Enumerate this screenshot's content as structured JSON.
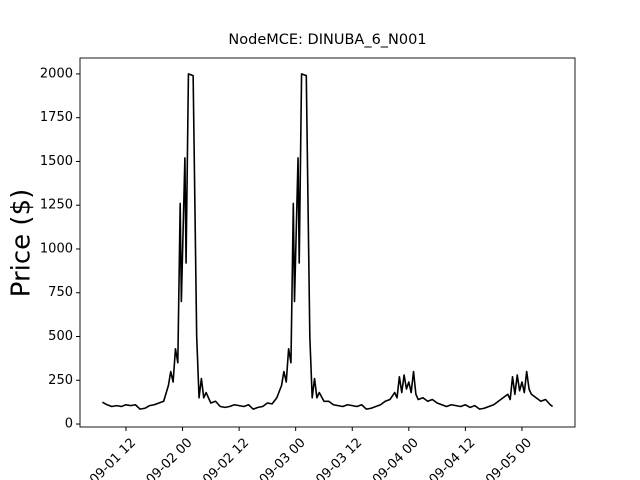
{
  "chart_data": {
    "type": "line",
    "title": "NodeMCE: DINUBA_6_N001",
    "y_label": "Price ($)",
    "x": [
      "09-01 07:00",
      "09-01 08:00",
      "09-01 09:00",
      "09-01 10:00",
      "09-01 11:00",
      "09-01 12:00",
      "09-01 13:00",
      "09-01 14:00",
      "09-01 15:00",
      "09-01 16:00",
      "09-01 17:00",
      "09-01 18:00",
      "09-01 19:00",
      "09-01 20:00",
      "09-01 21:00",
      "09-01 21:30",
      "09-01 22:00",
      "09-01 22:30",
      "09-01 23:00",
      "09-01 23:30",
      "09-01 23:45",
      "09-02 00:30",
      "09-02 00:45",
      "09-02 01:15",
      "09-02 02:15",
      "09-02 03:00",
      "09-02 03:30",
      "09-02 04:00",
      "09-02 04:30",
      "09-02 05:00",
      "09-02 06:00",
      "09-02 07:00",
      "09-02 08:00",
      "09-02 09:00",
      "09-02 10:00",
      "09-02 11:00",
      "09-02 12:00",
      "09-02 13:00",
      "09-02 14:00",
      "09-02 15:00",
      "09-02 16:00",
      "09-02 17:00",
      "09-02 18:00",
      "09-02 19:00",
      "09-02 20:00",
      "09-02 21:00",
      "09-02 21:30",
      "09-02 22:00",
      "09-02 22:30",
      "09-02 23:00",
      "09-02 23:30",
      "09-02 23:45",
      "09-03 00:30",
      "09-03 00:45",
      "09-03 01:15",
      "09-03 02:15",
      "09-03 03:00",
      "09-03 03:30",
      "09-03 04:00",
      "09-03 04:30",
      "09-03 05:00",
      "09-03 06:00",
      "09-03 07:00",
      "09-03 08:00",
      "09-03 09:00",
      "09-03 10:00",
      "09-03 11:00",
      "09-03 12:00",
      "09-03 13:00",
      "09-03 14:00",
      "09-03 15:00",
      "09-03 16:00",
      "09-03 17:00",
      "09-03 18:00",
      "09-03 19:00",
      "09-03 20:00",
      "09-03 21:00",
      "09-03 21:30",
      "09-03 22:00",
      "09-03 22:30",
      "09-03 23:00",
      "09-03 23:30",
      "09-04 00:00",
      "09-04 00:30",
      "09-04 01:00",
      "09-04 01:30",
      "09-04 02:00",
      "09-04 03:00",
      "09-04 04:00",
      "09-04 05:00",
      "09-04 06:00",
      "09-04 07:00",
      "09-04 08:00",
      "09-04 09:00",
      "09-04 10:00",
      "09-04 11:00",
      "09-04 12:00",
      "09-04 13:00",
      "09-04 14:00",
      "09-04 15:00",
      "09-04 16:00",
      "09-04 17:00",
      "09-04 18:00",
      "09-04 19:00",
      "09-04 20:00",
      "09-04 21:00",
      "09-04 21:30",
      "09-04 22:00",
      "09-04 22:30",
      "09-04 23:00",
      "09-04 23:30",
      "09-05 00:00",
      "09-05 00:30",
      "09-05 01:00",
      "09-05 01:30",
      "09-05 02:00",
      "09-05 03:00",
      "09-05 04:00",
      "09-05 05:00",
      "09-05 06:00",
      "09-05 06:30"
    ],
    "series": [
      {
        "name": "NodeMCE",
        "color": "#000000",
        "values": [
          125,
          110,
          100,
          105,
          100,
          110,
          105,
          110,
          85,
          90,
          105,
          110,
          120,
          130,
          220,
          300,
          240,
          430,
          350,
          1260,
          700,
          1520,
          920,
          2000,
          1990,
          500,
          150,
          260,
          150,
          180,
          120,
          130,
          100,
          95,
          100,
          110,
          105,
          100,
          110,
          85,
          95,
          100,
          120,
          115,
          150,
          220,
          300,
          240,
          430,
          350,
          1260,
          700,
          1520,
          920,
          2000,
          1990,
          500,
          150,
          260,
          150,
          180,
          130,
          130,
          110,
          105,
          100,
          110,
          105,
          100,
          110,
          85,
          90,
          100,
          110,
          130,
          140,
          180,
          150,
          270,
          180,
          280,
          200,
          240,
          180,
          300,
          170,
          140,
          150,
          130,
          140,
          120,
          110,
          100,
          110,
          105,
          100,
          110,
          95,
          105,
          85,
          90,
          100,
          110,
          130,
          150,
          170,
          140,
          270,
          170,
          280,
          190,
          240,
          180,
          300,
          200,
          170,
          150,
          130,
          140,
          110,
          100
        ]
      }
    ],
    "xlim": [
      "09-01 02:15",
      "09-05 11:15"
    ],
    "xticks": [
      {
        "value": "09-01 12:00",
        "label": "09-01 12"
      },
      {
        "value": "09-02 00:00",
        "label": "09-02 00"
      },
      {
        "value": "09-02 12:00",
        "label": "09-02 12"
      },
      {
        "value": "09-03 00:00",
        "label": "09-03 00"
      },
      {
        "value": "09-03 12:00",
        "label": "09-03 12"
      },
      {
        "value": "09-04 00:00",
        "label": "09-04 00"
      },
      {
        "value": "09-04 12:00",
        "label": "09-04 12"
      },
      {
        "value": "09-05 00:00",
        "label": "09-05 00"
      }
    ],
    "ylim": [
      -17,
      2091
    ],
    "yticks": [
      0,
      250,
      500,
      750,
      1000,
      1250,
      1500,
      1750,
      2000
    ],
    "grid": false
  }
}
